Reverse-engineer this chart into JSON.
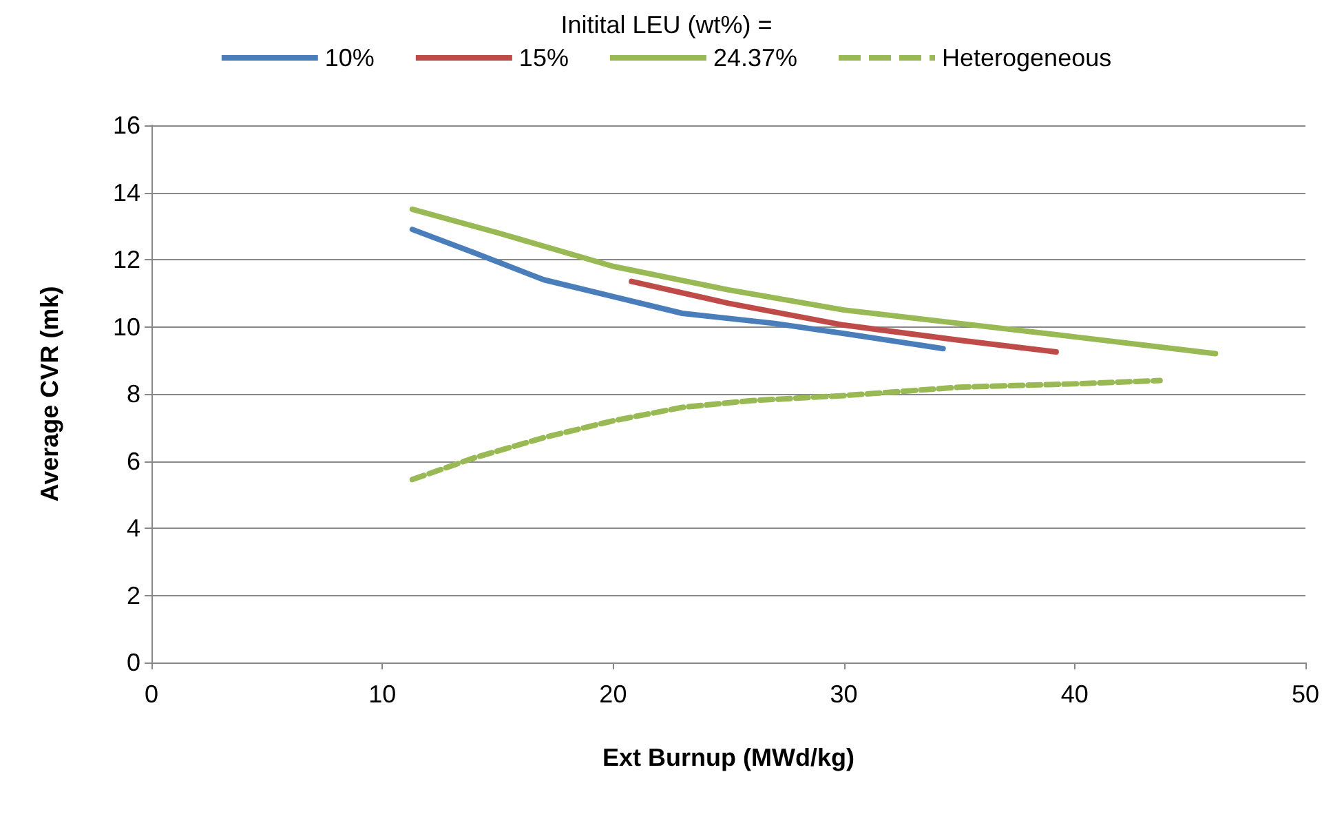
{
  "chart_data": {
    "type": "line",
    "legend_title": "Initital LEU (wt%) =",
    "xlabel": "Ext Burnup (MWd/kg)",
    "ylabel": "Average CVR (mk)",
    "xlim": [
      0,
      50
    ],
    "xticks": [
      0,
      10,
      20,
      30,
      40,
      50
    ],
    "ylim": [
      0,
      16
    ],
    "yticks": [
      0,
      2,
      4,
      6,
      8,
      10,
      12,
      14,
      16
    ],
    "grid": "y",
    "legend": "top",
    "marker": "none",
    "series": [
      {
        "name": "10%",
        "color": "#4a7ebb",
        "line_style": "solid",
        "x": [
          11.3,
          14,
          17,
          20,
          23,
          27,
          30,
          34.3
        ],
        "values": [
          12.9,
          12.2,
          11.4,
          10.9,
          10.4,
          10.1,
          9.8,
          9.35
        ]
      },
      {
        "name": "15%",
        "color": "#be4b48",
        "line_style": "solid",
        "x": [
          20.8,
          25,
          30,
          35,
          39.2
        ],
        "values": [
          11.35,
          10.7,
          10.05,
          9.6,
          9.25
        ]
      },
      {
        "name": "24.37%",
        "color": "#98b954",
        "line_style": "solid",
        "x": [
          11.3,
          15,
          20,
          25,
          30,
          35,
          40,
          46.1
        ],
        "values": [
          13.5,
          12.8,
          11.8,
          11.1,
          10.5,
          10.1,
          9.7,
          9.2
        ]
      },
      {
        "name": "Heterogeneous",
        "color": "#98b954",
        "line_style": "dashed",
        "x": [
          11.3,
          14,
          17,
          20,
          23,
          26,
          30,
          35,
          40,
          43.7
        ],
        "values": [
          5.45,
          6.1,
          6.7,
          7.2,
          7.6,
          7.8,
          7.95,
          8.2,
          8.3,
          8.4
        ]
      }
    ]
  }
}
